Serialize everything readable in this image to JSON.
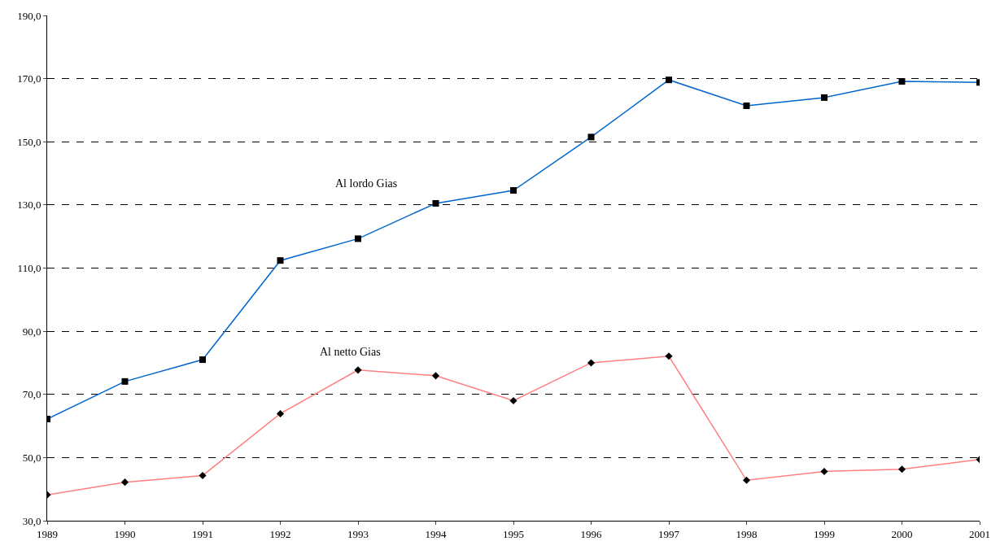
{
  "chart_data": {
    "type": "line",
    "x": [
      1989,
      1990,
      1991,
      1992,
      1993,
      1994,
      1995,
      1996,
      1997,
      1998,
      1999,
      2000,
      2001
    ],
    "series": [
      {
        "name": "Al lordo Gias",
        "color": "#0066cc",
        "marker": "square",
        "values": [
          62.2,
          74.1,
          81.0,
          112.4,
          119.3,
          130.5,
          134.6,
          151.5,
          169.6,
          161.4,
          164.0,
          169.1,
          168.8
        ]
      },
      {
        "name": "Al netto Gias",
        "color": "#ff7f7f",
        "marker": "diamond",
        "values": [
          38.2,
          42.2,
          44.3,
          63.9,
          77.7,
          75.9,
          68.0,
          80.0,
          82.1,
          42.8,
          45.6,
          46.3,
          49.4
        ]
      }
    ],
    "xlim": [
      1989,
      2001
    ],
    "xticks": [
      1989,
      1990,
      1991,
      1992,
      1993,
      1994,
      1995,
      1996,
      1997,
      1998,
      1999,
      2000,
      2001
    ],
    "ylim": [
      30,
      190
    ],
    "yticks": [
      {
        "value": 30,
        "label": "30,0"
      },
      {
        "value": 50,
        "label": "50,0"
      },
      {
        "value": 70,
        "label": "70,0"
      },
      {
        "value": 90,
        "label": "90,0"
      },
      {
        "value": 110,
        "label": "110,0"
      },
      {
        "value": 130,
        "label": "130,0"
      },
      {
        "value": 150,
        "label": "150,0"
      },
      {
        "value": 170,
        "label": "170,0"
      },
      {
        "value": 190,
        "label": "190,0"
      }
    ],
    "grid": "y",
    "legend": false,
    "line_style": "solid"
  }
}
